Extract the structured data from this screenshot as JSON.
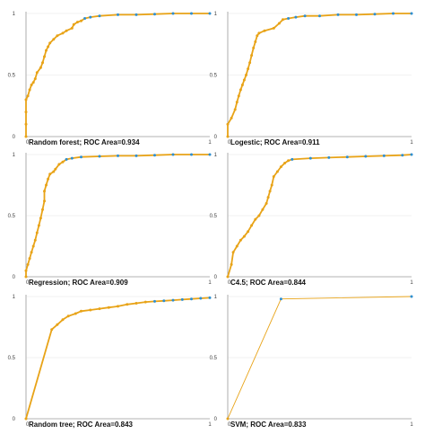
{
  "colors": {
    "curve": "#e8a317",
    "markers": "#2f8fd0",
    "axis": "#9a9a9a",
    "grid": "#e6e6e6"
  },
  "chart_data": [
    {
      "type": "line",
      "caption": "Random forest; ROC Area=0.934",
      "xlim": [
        0,
        1
      ],
      "ylim": [
        0,
        1
      ],
      "x_ticks": [
        "0",
        "1"
      ],
      "y_ticks": [
        "0",
        "0.5",
        "1"
      ],
      "points": [
        [
          0,
          0
        ],
        [
          0,
          0.1
        ],
        [
          0,
          0.2
        ],
        [
          0,
          0.3
        ],
        [
          0.01,
          0.33
        ],
        [
          0.02,
          0.38
        ],
        [
          0.03,
          0.42
        ],
        [
          0.04,
          0.44
        ],
        [
          0.05,
          0.47
        ],
        [
          0.06,
          0.52
        ],
        [
          0.08,
          0.56
        ],
        [
          0.09,
          0.6
        ],
        [
          0.1,
          0.65
        ],
        [
          0.11,
          0.7
        ],
        [
          0.12,
          0.73
        ],
        [
          0.13,
          0.76
        ],
        [
          0.15,
          0.79
        ],
        [
          0.17,
          0.82
        ],
        [
          0.2,
          0.84
        ],
        [
          0.22,
          0.86
        ],
        [
          0.25,
          0.88
        ],
        [
          0.26,
          0.91
        ],
        [
          0.28,
          0.93
        ],
        [
          0.3,
          0.94
        ],
        [
          0.32,
          0.96
        ],
        [
          0.35,
          0.97
        ],
        [
          0.4,
          0.98
        ],
        [
          0.5,
          0.99
        ],
        [
          0.6,
          0.99
        ],
        [
          0.7,
          0.995
        ],
        [
          0.8,
          1
        ],
        [
          0.9,
          1
        ],
        [
          1,
          1
        ]
      ]
    },
    {
      "type": "line",
      "caption": "Logestic; ROC Area=0.911",
      "xlim": [
        0,
        1
      ],
      "ylim": [
        0,
        1
      ],
      "x_ticks": [
        "0",
        "1"
      ],
      "y_ticks": [
        "0",
        "0.5",
        "1"
      ],
      "points": [
        [
          0,
          0
        ],
        [
          0,
          0.1
        ],
        [
          0.02,
          0.15
        ],
        [
          0.04,
          0.22
        ],
        [
          0.05,
          0.28
        ],
        [
          0.06,
          0.33
        ],
        [
          0.07,
          0.38
        ],
        [
          0.08,
          0.42
        ],
        [
          0.09,
          0.46
        ],
        [
          0.1,
          0.5
        ],
        [
          0.11,
          0.55
        ],
        [
          0.12,
          0.6
        ],
        [
          0.13,
          0.66
        ],
        [
          0.14,
          0.72
        ],
        [
          0.15,
          0.77
        ],
        [
          0.16,
          0.82
        ],
        [
          0.17,
          0.84
        ],
        [
          0.2,
          0.86
        ],
        [
          0.25,
          0.88
        ],
        [
          0.28,
          0.92
        ],
        [
          0.3,
          0.95
        ],
        [
          0.33,
          0.96
        ],
        [
          0.37,
          0.97
        ],
        [
          0.42,
          0.98
        ],
        [
          0.5,
          0.98
        ],
        [
          0.6,
          0.99
        ],
        [
          0.7,
          0.99
        ],
        [
          0.8,
          0.995
        ],
        [
          0.9,
          1
        ],
        [
          1,
          1
        ]
      ]
    },
    {
      "type": "line",
      "caption": "Regression; ROC Area=0.909",
      "xlim": [
        0,
        1
      ],
      "ylim": [
        0,
        1
      ],
      "x_ticks": [
        "0",
        "1"
      ],
      "y_ticks": [
        "0",
        "0.5",
        "1"
      ],
      "points": [
        [
          0,
          0
        ],
        [
          0,
          0.05
        ],
        [
          0.01,
          0.1
        ],
        [
          0.02,
          0.15
        ],
        [
          0.03,
          0.2
        ],
        [
          0.04,
          0.25
        ],
        [
          0.05,
          0.3
        ],
        [
          0.06,
          0.36
        ],
        [
          0.07,
          0.42
        ],
        [
          0.08,
          0.48
        ],
        [
          0.09,
          0.55
        ],
        [
          0.1,
          0.62
        ],
        [
          0.1,
          0.7
        ],
        [
          0.11,
          0.75
        ],
        [
          0.12,
          0.8
        ],
        [
          0.13,
          0.84
        ],
        [
          0.15,
          0.86
        ],
        [
          0.16,
          0.88
        ],
        [
          0.18,
          0.92
        ],
        [
          0.2,
          0.94
        ],
        [
          0.22,
          0.96
        ],
        [
          0.25,
          0.97
        ],
        [
          0.3,
          0.98
        ],
        [
          0.4,
          0.985
        ],
        [
          0.5,
          0.99
        ],
        [
          0.6,
          0.99
        ],
        [
          0.7,
          0.995
        ],
        [
          0.8,
          1
        ],
        [
          0.9,
          1
        ],
        [
          1,
          1
        ]
      ]
    },
    {
      "type": "line",
      "caption": "C4.5; ROC Area=0.844",
      "xlim": [
        0,
        1
      ],
      "ylim": [
        0,
        1
      ],
      "x_ticks": [
        "0",
        "1"
      ],
      "y_ticks": [
        "0",
        "0.5",
        "1"
      ],
      "points": [
        [
          0,
          0
        ],
        [
          0.02,
          0.1
        ],
        [
          0.03,
          0.2
        ],
        [
          0.05,
          0.25
        ],
        [
          0.07,
          0.3
        ],
        [
          0.09,
          0.33
        ],
        [
          0.11,
          0.37
        ],
        [
          0.13,
          0.42
        ],
        [
          0.15,
          0.47
        ],
        [
          0.17,
          0.5
        ],
        [
          0.19,
          0.55
        ],
        [
          0.21,
          0.6
        ],
        [
          0.22,
          0.65
        ],
        [
          0.23,
          0.7
        ],
        [
          0.24,
          0.75
        ],
        [
          0.25,
          0.82
        ],
        [
          0.27,
          0.86
        ],
        [
          0.29,
          0.9
        ],
        [
          0.31,
          0.93
        ],
        [
          0.33,
          0.95
        ],
        [
          0.35,
          0.96
        ],
        [
          0.45,
          0.97
        ],
        [
          0.55,
          0.975
        ],
        [
          0.65,
          0.98
        ],
        [
          0.75,
          0.985
        ],
        [
          0.85,
          0.99
        ],
        [
          0.95,
          0.995
        ],
        [
          1,
          1
        ]
      ]
    },
    {
      "type": "line",
      "caption": "Random tree; ROC Area=0.843",
      "xlim": [
        0,
        1
      ],
      "ylim": [
        0,
        1
      ],
      "x_ticks": [
        "0",
        "1"
      ],
      "y_ticks": [
        "0",
        "0.5",
        "1"
      ],
      "points": [
        [
          0,
          0
        ],
        [
          0.14,
          0.73
        ],
        [
          0.17,
          0.77
        ],
        [
          0.2,
          0.81
        ],
        [
          0.23,
          0.84
        ],
        [
          0.27,
          0.86
        ],
        [
          0.3,
          0.88
        ],
        [
          0.35,
          0.89
        ],
        [
          0.4,
          0.9
        ],
        [
          0.45,
          0.91
        ],
        [
          0.5,
          0.92
        ],
        [
          0.55,
          0.935
        ],
        [
          0.6,
          0.945
        ],
        [
          0.65,
          0.955
        ],
        [
          0.7,
          0.96
        ],
        [
          0.75,
          0.965
        ],
        [
          0.8,
          0.97
        ],
        [
          0.85,
          0.975
        ],
        [
          0.9,
          0.98
        ],
        [
          0.95,
          0.985
        ],
        [
          1,
          0.99
        ]
      ]
    },
    {
      "type": "line",
      "caption": "SVM; ROC Area=0.833",
      "xlim": [
        0,
        1
      ],
      "ylim": [
        0,
        1
      ],
      "x_ticks": [
        "0",
        "1"
      ],
      "y_ticks": [
        "0",
        "0.5",
        "1"
      ],
      "points": [
        [
          0,
          0
        ],
        [
          0.29,
          0.98
        ],
        [
          1,
          1
        ]
      ]
    }
  ]
}
